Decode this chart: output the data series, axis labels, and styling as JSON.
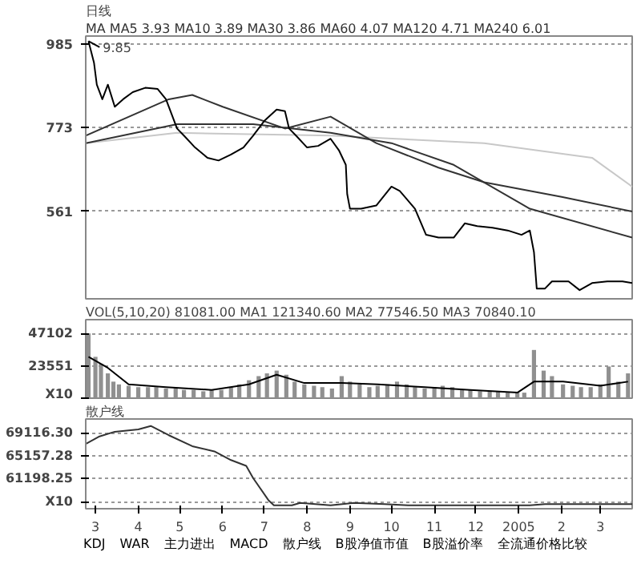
{
  "chart_data": [
    {
      "type": "line",
      "title": "日线",
      "subtitle": "MA MA5 3.93 MA10 3.89 MA30 3.86 MA60 4.07 MA120 4.71 MA240 6.01",
      "xlim": [
        "2004-02-23",
        "2005-03-24"
      ],
      "ylim": [
        340,
        1005
      ],
      "yticks": [
        561,
        773,
        985
      ],
      "tick_labels": "y",
      "grid": "y",
      "series": [
        {
          "color": "#c8c8c8",
          "x": [
            "2004-02-23",
            "2004-04-29",
            "2004-08-18",
            "2004-12-07",
            "2005-02-23",
            "2005-03-24"
          ],
          "values": [
            734,
            760,
            753,
            734,
            697,
            624
          ]
        },
        {
          "color": "#333333",
          "x": [
            "2004-02-23",
            "2004-04-29",
            "2004-06-23",
            "2004-08-18",
            "2004-10-01",
            "2004-11-15",
            "2005-01-09",
            "2005-03-24"
          ],
          "values": [
            734,
            782,
            782,
            760,
            734,
            679,
            568,
            495
          ]
        },
        {
          "color": "#333333",
          "x": [
            "2004-02-23",
            "2004-04-23",
            "2004-05-10",
            "2004-06-01",
            "2004-07-16",
            "2004-08-18",
            "2004-09-20",
            "2004-11-04",
            "2004-12-07",
            "2005-02-01",
            "2005-03-24"
          ],
          "values": [
            753,
            845,
            856,
            826,
            771,
            801,
            734,
            672,
            635,
            598,
            561
          ]
        },
        {
          "color": "#000000",
          "x": [
            "2004-02-25",
            "2004-02-29",
            "2004-03-02",
            "2004-03-06",
            "2004-03-10",
            "2004-03-15",
            "2004-03-21",
            "2004-03-28",
            "2004-04-06",
            "2004-04-15",
            "2004-04-21",
            "2004-04-25",
            "2004-04-29",
            "2004-05-04",
            "2004-05-12",
            "2004-05-21",
            "2004-05-29",
            "2004-06-07",
            "2004-06-16",
            "2004-06-23",
            "2004-07-01",
            "2004-07-10",
            "2004-07-16",
            "2004-07-19",
            "2004-07-24",
            "2004-08-01",
            "2004-08-09",
            "2004-08-18",
            "2004-08-24",
            "2004-08-29",
            "2004-08-30",
            "2004-09-01",
            "2004-09-09",
            "2004-09-20",
            "2004-10-01",
            "2004-10-07",
            "2004-10-18",
            "2004-10-26",
            "2004-11-04",
            "2004-11-15",
            "2004-11-23",
            "2004-12-02",
            "2004-12-13",
            "2004-12-24",
            "2005-01-03",
            "2005-01-09",
            "2005-01-12",
            "2005-01-14",
            "2005-01-20",
            "2005-01-25",
            "2005-02-06",
            "2005-02-14",
            "2005-02-23",
            "2005-03-06",
            "2005-03-17",
            "2005-03-24"
          ],
          "values": [
            992,
            937,
            882,
            845,
            882,
            826,
            845,
            863,
            874,
            871,
            845,
            808,
            771,
            753,
            723,
            697,
            690,
            705,
            723,
            753,
            790,
            819,
            815,
            771,
            753,
            723,
            727,
            745,
            716,
            679,
            605,
            568,
            568,
            576,
            624,
            613,
            568,
            502,
            495,
            495,
            531,
            524,
            520,
            513,
            502,
            513,
            458,
            366,
            366,
            384,
            384,
            362,
            380,
            384,
            384,
            380
          ]
        }
      ],
      "annotations": [
        {
          "text": "9.85",
          "x": "2004-02-25",
          "y": 992
        }
      ]
    },
    {
      "type": "bar",
      "title": "VOL(5,10,20) 81081.00 MA1 121340.60 MA2 77546.50 MA3 70840.10",
      "xlim": [
        "2004-02-23",
        "2005-03-24"
      ],
      "ylim": [
        0,
        57000
      ],
      "yticks": [
        {
          "value": 0,
          "label": "X10"
        },
        23551,
        47102
      ],
      "tick_labels": "y",
      "grid": "y",
      "series": [
        {
          "color": "#909090",
          "x": [
            "2004-02-25",
            "2004-03-01",
            "2004-03-05",
            "2004-03-10",
            "2004-03-14",
            "2004-03-18",
            "2004-03-25",
            "2004-04-01",
            "2004-04-08",
            "2004-04-14",
            "2004-04-21",
            "2004-04-28",
            "2004-05-04",
            "2004-05-11",
            "2004-05-18",
            "2004-05-24",
            "2004-05-31",
            "2004-06-07",
            "2004-06-13",
            "2004-06-20",
            "2004-06-27",
            "2004-07-03",
            "2004-07-10",
            "2004-07-17",
            "2004-07-23",
            "2004-07-30",
            "2004-08-06",
            "2004-08-12",
            "2004-08-19",
            "2004-08-26",
            "2004-09-01",
            "2004-09-08",
            "2004-09-15",
            "2004-09-21",
            "2004-09-28",
            "2004-10-05",
            "2004-10-12",
            "2004-10-18",
            "2004-10-25",
            "2004-11-01",
            "2004-11-07",
            "2004-11-14",
            "2004-11-21",
            "2004-11-27",
            "2004-12-04",
            "2004-12-11",
            "2004-12-17",
            "2004-12-24",
            "2004-12-31",
            "2005-01-05",
            "2005-01-12",
            "2005-01-19",
            "2005-01-25",
            "2005-02-02",
            "2005-02-09",
            "2005-02-15",
            "2005-02-22",
            "2005-03-01",
            "2005-03-07",
            "2005-03-14",
            "2005-03-21"
          ],
          "values": [
            47000,
            30000,
            25000,
            18000,
            12000,
            10000,
            9000,
            8000,
            8000,
            8000,
            7000,
            7000,
            6000,
            6000,
            5000,
            6000,
            6000,
            8000,
            10000,
            13000,
            16000,
            18000,
            20000,
            17000,
            12000,
            10000,
            9000,
            8000,
            7000,
            16000,
            12000,
            10000,
            8000,
            9000,
            10000,
            12000,
            10000,
            8000,
            7000,
            8000,
            9000,
            8000,
            6000,
            6000,
            5000,
            5000,
            5000,
            4000,
            4000,
            4000,
            35000,
            20000,
            16000,
            10000,
            9000,
            8000,
            8000,
            10000,
            23000,
            12000,
            18000
          ]
        },
        {
          "type": "line",
          "color": "#000000",
          "x": [
            "2004-02-25",
            "2004-03-10",
            "2004-03-25",
            "2004-04-21",
            "2004-05-24",
            "2004-06-20",
            "2004-07-10",
            "2004-07-30",
            "2004-08-26",
            "2004-09-21",
            "2004-10-25",
            "2004-11-27",
            "2004-12-31",
            "2005-01-12",
            "2005-02-02",
            "2005-03-01",
            "2005-03-21"
          ],
          "values": [
            30000,
            22000,
            10000,
            8000,
            6000,
            10000,
            17000,
            11000,
            11000,
            10000,
            8000,
            6000,
            4000,
            12000,
            12000,
            9000,
            12000
          ]
        }
      ]
    },
    {
      "type": "line",
      "title": "散户线",
      "xlim": [
        "2004-02-23",
        "2005-03-24"
      ],
      "ylim": [
        56000,
        71500
      ],
      "xticks": [
        {
          "value": "2004-03-01",
          "label": "3"
        },
        {
          "value": "2004-04-01",
          "label": "4"
        },
        {
          "value": "2004-05-01",
          "label": "5"
        },
        {
          "value": "2004-06-01",
          "label": "6"
        },
        {
          "value": "2004-07-01",
          "label": "7"
        },
        {
          "value": "2004-08-01",
          "label": "8"
        },
        {
          "value": "2004-09-01",
          "label": "9"
        },
        {
          "value": "2004-10-01",
          "label": "10"
        },
        {
          "value": "2004-11-01",
          "label": "11"
        },
        {
          "value": "2004-12-01",
          "label": "12"
        },
        {
          "value": "2005-01-01",
          "label": "2005"
        },
        {
          "value": "2005-02-01",
          "label": "2"
        },
        {
          "value": "2005-03-01",
          "label": "3"
        }
      ],
      "yticks": [
        {
          "value": 57240.23,
          "label": "X10"
        },
        {
          "value": 61198.25,
          "label": "61198.25"
        },
        {
          "value": 65157.28,
          "label": "65157.28"
        },
        {
          "value": 69116.3,
          "label": "69116.30"
        }
      ],
      "grid": "y",
      "series": [
        {
          "color": "#333333",
          "x": [
            "2004-02-23",
            "2004-03-04",
            "2004-03-15",
            "2004-04-01",
            "2004-04-10",
            "2004-04-23",
            "2004-05-10",
            "2004-05-26",
            "2004-06-07",
            "2004-06-18",
            "2004-06-23",
            "2004-07-04",
            "2004-07-08",
            "2004-07-21",
            "2004-07-27",
            "2004-08-18",
            "2004-09-04",
            "2004-09-26",
            "2004-10-13",
            "2005-01-09",
            "2005-01-20",
            "2005-03-24"
          ],
          "values": [
            67200,
            68500,
            69300,
            69700,
            70300,
            68700,
            66800,
            65900,
            64400,
            63400,
            61300,
            57500,
            56600,
            56600,
            57000,
            56600,
            57000,
            56800,
            56600,
            56600,
            56800,
            56800
          ]
        }
      ],
      "annotations": [
        "KDJ",
        "WAR",
        "主力进出",
        "MACD",
        "散户线",
        "B股净值市值",
        "B股溢价率",
        "全流通价格比较"
      ]
    }
  ]
}
